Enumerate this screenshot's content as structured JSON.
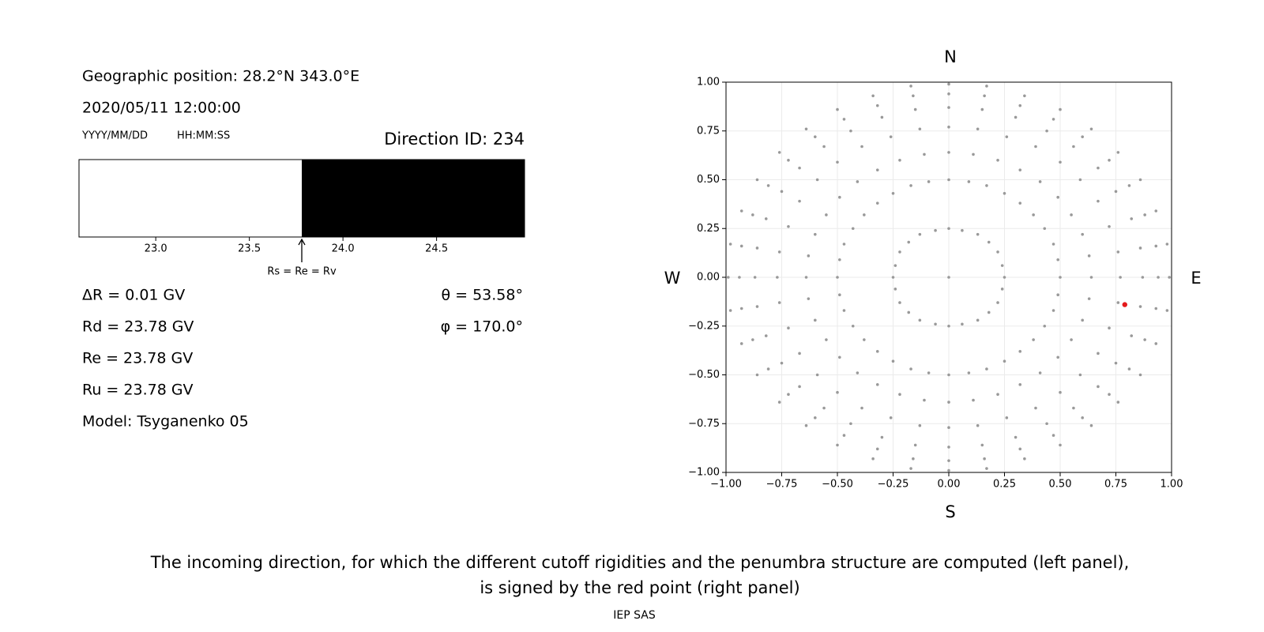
{
  "chart_data": [
    {
      "type": "penumbra",
      "title": "Geographic position: 28.2°N 343.0°E",
      "subtitle": "2020/05/11 12:00:00",
      "date_format": "YYYY/MM/DD",
      "time_format": "HH:MM:SS",
      "direction": "Direction ID: 234",
      "xlim": [
        22.59,
        24.97
      ],
      "xticks": [
        {
          "value": 23,
          "label": "23.0"
        },
        {
          "value": 23.5,
          "label": "23.5"
        },
        {
          "value": 24,
          "label": "24.0"
        },
        {
          "value": 24.5,
          "label": "24.5"
        }
      ],
      "segments": [
        {
          "color": "#ffffff",
          "start": 22.59,
          "end": 23.78
        },
        {
          "color": "#000000",
          "start": 23.78,
          "end": 24.97
        }
      ],
      "marker": {
        "value": 23.78,
        "label": "Rs = Re = Rv"
      },
      "results": [
        "ΔR = 0.01 GV",
        "Rd = 23.78 GV",
        "Re = 23.78 GV",
        "Ru = 23.78 GV",
        "Model: Tsyganenko 05"
      ],
      "angles": [
        "θ = 53.58°",
        "φ = 170.0°"
      ]
    },
    {
      "type": "scatter",
      "compass": {
        "north": "N",
        "south": "S",
        "west": "W",
        "east": "E"
      },
      "xlim": [
        -1,
        1
      ],
      "ylim": [
        -1,
        1
      ],
      "grid": true,
      "xticks": [
        {
          "value": -1,
          "label": "−1.00"
        },
        {
          "value": -0.75,
          "label": "−0.75"
        },
        {
          "value": -0.5,
          "label": "−0.50"
        },
        {
          "value": -0.25,
          "label": "−0.25"
        },
        {
          "value": 0,
          "label": "0.00"
        },
        {
          "value": 0.25,
          "label": "0.25"
        },
        {
          "value": 0.5,
          "label": "0.50"
        },
        {
          "value": 0.75,
          "label": "0.75"
        },
        {
          "value": 1,
          "label": "1.00"
        }
      ],
      "yticks": [
        {
          "value": -1,
          "label": "−1.00"
        },
        {
          "value": -0.75,
          "label": "−0.75"
        },
        {
          "value": -0.5,
          "label": "−0.50"
        },
        {
          "value": -0.25,
          "label": "−0.25"
        },
        {
          "value": 0,
          "label": "0.00"
        },
        {
          "value": 0.25,
          "label": "0.25"
        },
        {
          "value": 0.5,
          "label": "0.50"
        },
        {
          "value": 0.75,
          "label": "0.75"
        },
        {
          "value": 1,
          "label": "1.00"
        }
      ],
      "series": [
        {
          "color": "#999999",
          "x": [
            0.25,
            0.24,
            0.22,
            0.18,
            0.13,
            0.06,
            0,
            -0.06,
            -0.13,
            -0.18,
            -0.22,
            -0.24,
            -0.25,
            -0.24,
            -0.22,
            -0.18,
            -0.13,
            -0.06,
            0,
            0.06,
            0.13,
            0.18,
            0.22,
            0.24,
            0
          ],
          "y": [
            0,
            0.06,
            0.13,
            0.18,
            0.22,
            0.24,
            0.25,
            0.24,
            0.22,
            0.18,
            0.13,
            0.06,
            0,
            -0.06,
            -0.13,
            -0.18,
            -0.22,
            -0.24,
            -0.25,
            -0.24,
            -0.22,
            -0.18,
            -0.13,
            -0.06,
            0
          ]
        },
        {
          "color": "#999999",
          "x": [
            0.5,
            0.49,
            0.47,
            0.43,
            0.38,
            0.32,
            0.25,
            0.17,
            0.09,
            0,
            -0.09,
            -0.17,
            -0.25,
            -0.32,
            -0.38,
            -0.43,
            -0.47,
            -0.49,
            -0.5,
            -0.49,
            -0.47,
            -0.43,
            -0.38,
            -0.32,
            -0.25,
            -0.17,
            -0.09,
            0,
            0.09,
            0.17,
            0.25,
            0.32,
            0.38,
            0.43,
            0.47,
            0.49
          ],
          "y": [
            0,
            0.09,
            0.17,
            0.25,
            0.32,
            0.38,
            0.43,
            0.47,
            0.49,
            0.5,
            0.49,
            0.47,
            0.43,
            0.38,
            0.32,
            0.25,
            0.17,
            0.09,
            0,
            -0.09,
            -0.17,
            -0.25,
            -0.32,
            -0.38,
            -0.43,
            -0.47,
            -0.49,
            -0.5,
            -0.49,
            -0.47,
            -0.43,
            -0.38,
            -0.32,
            -0.25,
            -0.17,
            -0.09
          ]
        },
        {
          "color": "#999999",
          "x": [
            0.64,
            0.63,
            0.6,
            0.55,
            0.49,
            0.41,
            0.32,
            0.22,
            0.11,
            0,
            -0.11,
            -0.22,
            -0.32,
            -0.41,
            -0.49,
            -0.55,
            -0.6,
            -0.63,
            -0.64,
            -0.63,
            -0.6,
            -0.55,
            -0.49,
            -0.41,
            -0.32,
            -0.22,
            -0.11,
            0,
            0.11,
            0.22,
            0.32,
            0.41,
            0.49,
            0.55,
            0.6,
            0.63
          ],
          "y": [
            0,
            0.11,
            0.22,
            0.32,
            0.41,
            0.49,
            0.55,
            0.6,
            0.63,
            0.64,
            0.63,
            0.6,
            0.55,
            0.49,
            0.41,
            0.32,
            0.22,
            0.11,
            0,
            -0.11,
            -0.22,
            -0.32,
            -0.41,
            -0.49,
            -0.55,
            -0.6,
            -0.63,
            -0.64,
            -0.63,
            -0.6,
            -0.55,
            -0.49,
            -0.41,
            -0.32,
            -0.22,
            -0.11
          ]
        },
        {
          "color": "#999999",
          "x": [
            0.77,
            0.76,
            0.72,
            0.67,
            0.59,
            0.5,
            0.39,
            0.26,
            0.13,
            0,
            -0.13,
            -0.26,
            -0.39,
            -0.5,
            -0.59,
            -0.67,
            -0.72,
            -0.76,
            -0.77,
            -0.76,
            -0.72,
            -0.67,
            -0.59,
            -0.5,
            -0.39,
            -0.26,
            -0.13,
            0,
            0.13,
            0.26,
            0.39,
            0.5,
            0.59,
            0.67,
            0.72,
            0.76
          ],
          "y": [
            0,
            0.13,
            0.26,
            0.39,
            0.5,
            0.59,
            0.67,
            0.72,
            0.76,
            0.77,
            0.76,
            0.72,
            0.67,
            0.59,
            0.5,
            0.39,
            0.26,
            0.13,
            0,
            -0.13,
            -0.26,
            -0.39,
            -0.5,
            -0.59,
            -0.67,
            -0.72,
            -0.76,
            -0.77,
            -0.76,
            -0.72,
            -0.67,
            -0.59,
            -0.5,
            -0.39,
            -0.26,
            -0.13
          ]
        },
        {
          "color": "#999999",
          "x": [
            0.87,
            0.86,
            0.82,
            0.75,
            0.67,
            0.56,
            0.44,
            0.3,
            0.15,
            0,
            -0.15,
            -0.3,
            -0.44,
            -0.56,
            -0.67,
            -0.75,
            -0.82,
            -0.86,
            -0.87,
            -0.86,
            -0.82,
            -0.75,
            -0.67,
            -0.56,
            -0.44,
            -0.3,
            -0.15,
            0,
            0.15,
            0.3,
            0.44,
            0.56,
            0.67,
            0.75,
            0.82,
            0.86
          ],
          "y": [
            0,
            0.15,
            0.3,
            0.44,
            0.56,
            0.67,
            0.75,
            0.82,
            0.86,
            0.87,
            0.86,
            0.82,
            0.75,
            0.67,
            0.56,
            0.44,
            0.3,
            0.15,
            0,
            -0.15,
            -0.3,
            -0.44,
            -0.56,
            -0.67,
            -0.75,
            -0.82,
            -0.86,
            -0.87,
            -0.86,
            -0.82,
            -0.75,
            -0.67,
            -0.56,
            -0.44,
            -0.3,
            -0.15
          ]
        },
        {
          "color": "#999999",
          "x": [
            0.94,
            0.93,
            0.88,
            0.81,
            0.72,
            0.6,
            0.47,
            0.32,
            0.16,
            0,
            -0.16,
            -0.32,
            -0.47,
            -0.6,
            -0.72,
            -0.81,
            -0.88,
            -0.93,
            -0.94,
            -0.93,
            -0.88,
            -0.81,
            -0.72,
            -0.6,
            -0.47,
            -0.32,
            -0.16,
            0,
            0.16,
            0.32,
            0.47,
            0.6,
            0.72,
            0.81,
            0.88,
            0.93
          ],
          "y": [
            0,
            0.16,
            0.32,
            0.47,
            0.6,
            0.72,
            0.81,
            0.88,
            0.93,
            0.94,
            0.93,
            0.88,
            0.81,
            0.72,
            0.6,
            0.47,
            0.32,
            0.16,
            0,
            -0.16,
            -0.32,
            -0.47,
            -0.6,
            -0.72,
            -0.81,
            -0.88,
            -0.93,
            -0.94,
            -0.93,
            -0.88,
            -0.81,
            -0.72,
            -0.6,
            -0.47,
            -0.32,
            -0.16
          ]
        },
        {
          "color": "#999999",
          "x": [
            0.99,
            0.98,
            0.93,
            0.86,
            0.76,
            0.64,
            0.5,
            0.34,
            0.17,
            0,
            -0.17,
            -0.34,
            -0.5,
            -0.64,
            -0.76,
            -0.86,
            -0.93,
            -0.98,
            -0.99,
            -0.98,
            -0.93,
            -0.86,
            -0.76,
            -0.64,
            -0.5,
            -0.34,
            -0.17,
            0,
            0.17,
            0.34,
            0.5,
            0.64,
            0.76,
            0.86,
            0.93,
            0.98
          ],
          "y": [
            0,
            0.17,
            0.34,
            0.5,
            0.64,
            0.76,
            0.86,
            0.93,
            0.98,
            0.99,
            0.98,
            0.93,
            0.86,
            0.76,
            0.64,
            0.5,
            0.34,
            0.17,
            0,
            -0.17,
            -0.34,
            -0.5,
            -0.64,
            -0.76,
            -0.86,
            -0.93,
            -0.98,
            -0.99,
            -0.98,
            -0.93,
            -0.86,
            -0.76,
            -0.64,
            -0.5,
            -0.34,
            -0.17
          ]
        },
        {
          "color": "#e41a1c",
          "x": [
            0.79
          ],
          "y": [
            -0.14
          ]
        }
      ]
    }
  ],
  "caption": [
    "The incoming direction, for which the different cutoff rigidities and the penumbra structure are computed (left panel),",
    "is signed by the red point (right panel)"
  ],
  "footer": "IEP SAS"
}
